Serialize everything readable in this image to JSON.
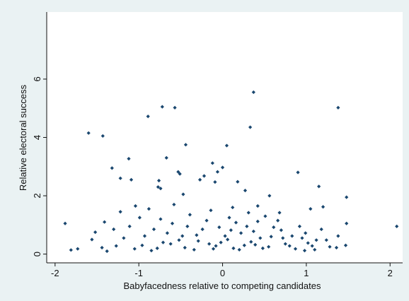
{
  "chart_data": {
    "type": "scatter",
    "title": "",
    "xlabel": "Babyfacedness relative to competing candidates",
    "ylabel": "Relative electoral success",
    "xlim": [
      -2.1,
      2.15
    ],
    "ylim": [
      -0.3,
      8.3
    ],
    "xticks": [
      -2,
      -1,
      0,
      1,
      2
    ],
    "yticks": [
      0,
      2,
      4,
      6
    ],
    "grid": false,
    "legend": "none",
    "marker": "diamond",
    "colors": {
      "marker": "#1a476f",
      "plot_background": "#ffffff",
      "page_background": "#eaf2f3"
    },
    "points": [
      [
        0.37,
        5.55
      ],
      [
        -0.72,
        5.05
      ],
      [
        -0.57,
        5.02
      ],
      [
        1.38,
        5.02
      ],
      [
        -0.89,
        4.72
      ],
      [
        0.33,
        4.35
      ],
      [
        -1.6,
        4.15
      ],
      [
        -1.43,
        4.05
      ],
      [
        -0.44,
        3.75
      ],
      [
        0.05,
        3.72
      ],
      [
        -0.67,
        3.3
      ],
      [
        -1.12,
        3.27
      ],
      [
        -0.12,
        3.12
      ],
      [
        -1.32,
        2.95
      ],
      [
        0.0,
        2.97
      ],
      [
        -0.06,
        2.82
      ],
      [
        -0.53,
        2.82
      ],
      [
        0.9,
        2.8
      ],
      [
        -0.51,
        2.75
      ],
      [
        -0.22,
        2.68
      ],
      [
        -1.22,
        2.6
      ],
      [
        -1.09,
        2.55
      ],
      [
        -0.76,
        2.52
      ],
      [
        -0.77,
        2.3
      ],
      [
        -0.09,
        2.47
      ],
      [
        -0.74,
        2.25
      ],
      [
        1.15,
        2.32
      ],
      [
        -0.27,
        2.55
      ],
      [
        0.18,
        2.48
      ],
      [
        -0.47,
        2.05
      ],
      [
        0.27,
        2.18
      ],
      [
        0.56,
        2.0
      ],
      [
        1.48,
        1.95
      ],
      [
        -0.58,
        1.7
      ],
      [
        -1.88,
        1.05
      ],
      [
        2.08,
        0.95
      ],
      [
        -1.41,
        1.1
      ],
      [
        -1.52,
        0.75
      ],
      [
        -1.56,
        0.5
      ],
      [
        -1.73,
        0.18
      ],
      [
        -1.81,
        0.14
      ],
      [
        -1.38,
        0.1
      ],
      [
        -1.22,
        1.45
      ],
      [
        -1.04,
        1.65
      ],
      [
        -0.88,
        1.55
      ],
      [
        0.12,
        1.6
      ],
      [
        0.42,
        1.65
      ],
      [
        0.68,
        1.42
      ],
      [
        1.05,
        1.55
      ],
      [
        1.2,
        1.62
      ],
      [
        1.48,
        1.05
      ],
      [
        1.47,
        0.3
      ],
      [
        1.36,
        0.22
      ],
      [
        1.38,
        0.62
      ],
      [
        0.92,
        0.95
      ],
      [
        0.99,
        0.72
      ],
      [
        1.12,
        0.48
      ],
      [
        0.8,
        0.28
      ],
      [
        0.58,
        0.6
      ],
      [
        0.42,
        1.12
      ],
      [
        0.34,
        0.42
      ],
      [
        0.22,
        0.72
      ],
      [
        0.13,
        0.2
      ],
      [
        0.06,
        0.5
      ],
      [
        -0.04,
        0.92
      ],
      [
        -0.16,
        0.35
      ],
      [
        -0.31,
        0.65
      ],
      [
        -0.45,
        0.22
      ],
      [
        -0.6,
        1.05
      ],
      [
        -0.71,
        0.4
      ],
      [
        -0.82,
        0.85
      ],
      [
        -0.96,
        0.3
      ],
      [
        -1.11,
        0.95
      ],
      [
        -1.27,
        0.28
      ],
      [
        -0.39,
        1.35
      ],
      [
        -0.14,
        1.5
      ],
      [
        0.08,
        1.25
      ],
      [
        0.29,
        0.95
      ],
      [
        0.51,
        1.3
      ],
      [
        0.72,
        0.55
      ],
      [
        0.87,
        0.18
      ],
      [
        1.02,
        0.38
      ],
      [
        1.18,
        0.85
      ],
      [
        1.28,
        0.25
      ],
      [
        -1.18,
        0.55
      ],
      [
        -0.99,
        1.25
      ],
      [
        -0.85,
        0.12
      ],
      [
        -0.66,
        0.72
      ],
      [
        -0.52,
        0.48
      ],
      [
        -0.34,
        0.15
      ],
      [
        -0.24,
        0.85
      ],
      [
        -0.08,
        0.28
      ],
      [
        0.03,
        0.62
      ],
      [
        0.16,
        1.08
      ],
      [
        0.26,
        0.3
      ],
      [
        0.37,
        0.78
      ],
      [
        0.48,
        0.2
      ],
      [
        0.61,
        0.92
      ],
      [
        0.75,
        0.35
      ],
      [
        0.95,
        0.55
      ],
      [
        1.1,
        0.15
      ],
      [
        -1.44,
        0.22
      ],
      [
        -1.3,
        0.85
      ],
      [
        -0.93,
        0.62
      ],
      [
        -0.78,
        0.2
      ],
      [
        -0.62,
        0.35
      ],
      [
        -0.42,
        0.95
      ],
      [
        -0.29,
        0.45
      ],
      [
        -0.19,
        1.15
      ],
      [
        -0.02,
        0.4
      ],
      [
        0.1,
        0.82
      ],
      [
        0.2,
        0.15
      ],
      [
        0.31,
        1.42
      ],
      [
        0.45,
        0.55
      ],
      [
        0.55,
        0.25
      ],
      [
        0.66,
        1.15
      ],
      [
        0.83,
        0.62
      ],
      [
        1.07,
        0.28
      ],
      [
        1.24,
        0.48
      ],
      [
        -1.05,
        0.18
      ],
      [
        -0.74,
        1.2
      ],
      [
        -0.48,
        0.62
      ],
      [
        -0.11,
        0.18
      ],
      [
        0.39,
        0.32
      ],
      [
        0.7,
        0.82
      ],
      [
        0.98,
        0.12
      ]
    ]
  }
}
